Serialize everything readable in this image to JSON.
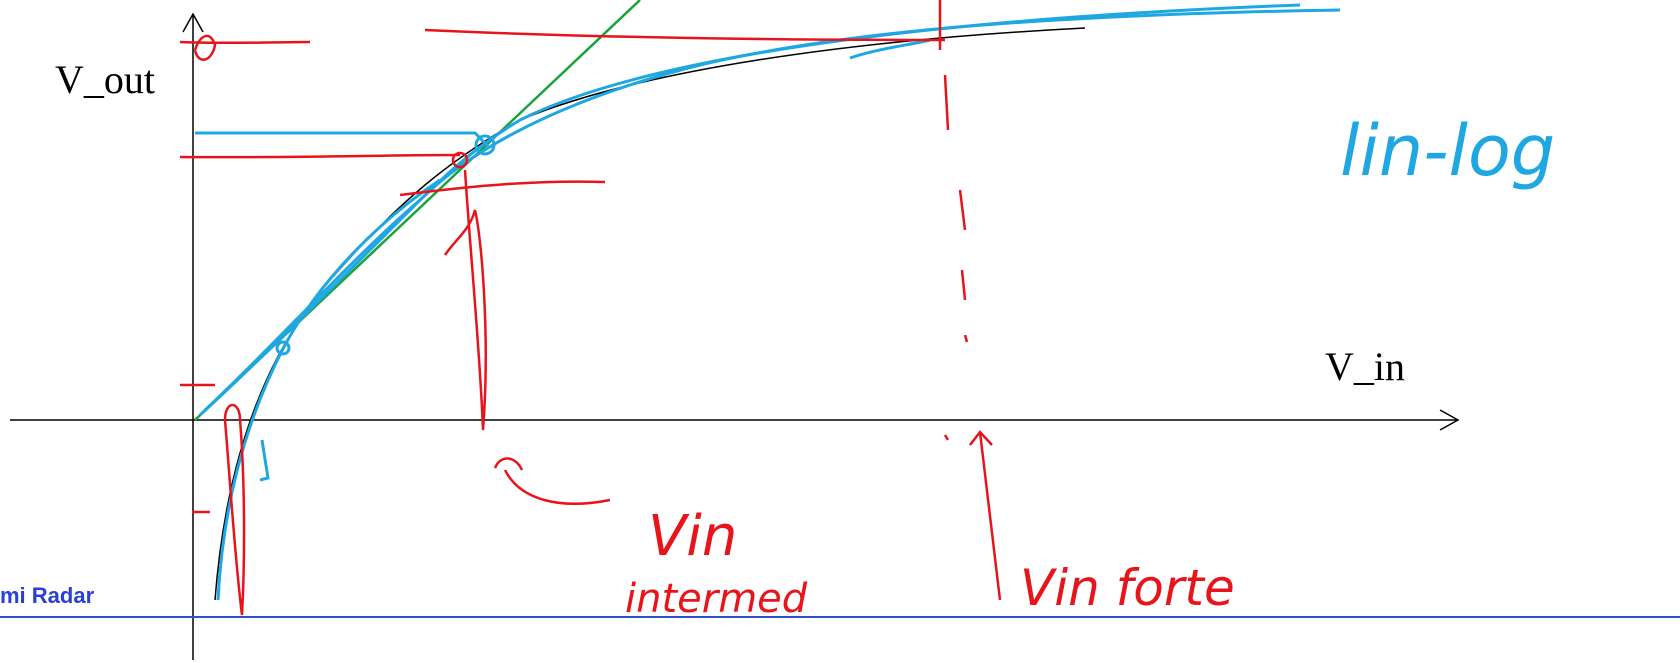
{
  "axes": {
    "y_label": "V_out",
    "x_label": "V_in"
  },
  "footer": "mi Radar",
  "annotations": {
    "top_right": "lin-log",
    "left_a": "Vin",
    "left_b": "intermed",
    "right": "Vin forte"
  }
}
